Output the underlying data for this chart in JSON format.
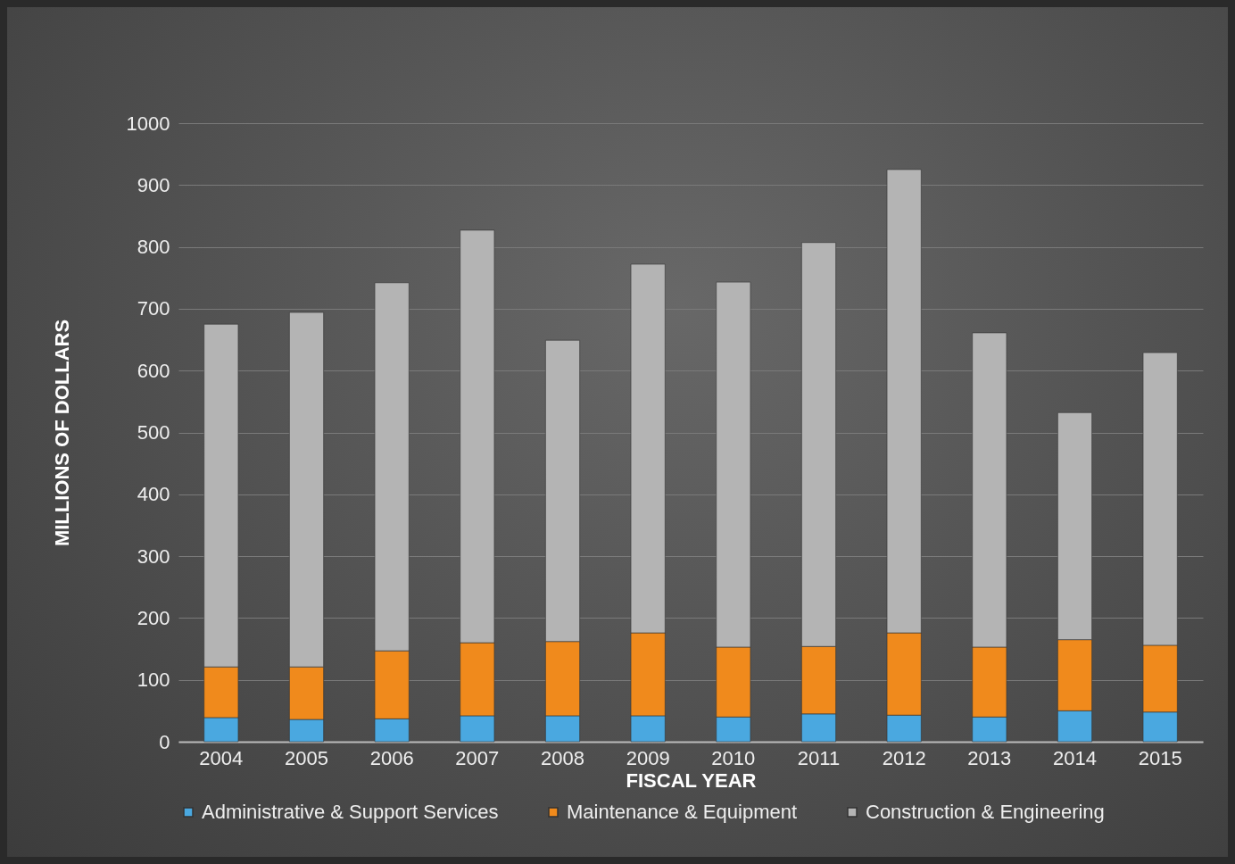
{
  "chart_data": {
    "type": "bar",
    "stacked": true,
    "xlabel": "FISCAL YEAR",
    "ylabel": "MILLIONS OF DOLLARS",
    "categories": [
      "2004",
      "2005",
      "2006",
      "2007",
      "2008",
      "2009",
      "2010",
      "2011",
      "2012",
      "2013",
      "2014",
      "2015"
    ],
    "series": [
      {
        "name": "Administrative & Support Services",
        "color": "#4aa8e0",
        "values": [
          39,
          36,
          37,
          42,
          42,
          42,
          40,
          45,
          43,
          40,
          50,
          48
        ]
      },
      {
        "name": "Maintenance & Equipment",
        "color": "#f08a1c",
        "values": [
          82,
          85,
          110,
          118,
          120,
          134,
          113,
          109,
          133,
          113,
          115,
          108
        ]
      },
      {
        "name": "Construction & Engineering",
        "color": "#b4b4b4",
        "values": [
          554,
          573,
          595,
          667,
          487,
          596,
          590,
          653,
          749,
          508,
          367,
          473
        ]
      }
    ],
    "ylim": [
      0,
      1000
    ],
    "yticks": [
      0,
      100,
      200,
      300,
      400,
      500,
      600,
      700,
      800,
      900,
      1000
    ],
    "grid": "y",
    "legend": "bottom"
  }
}
